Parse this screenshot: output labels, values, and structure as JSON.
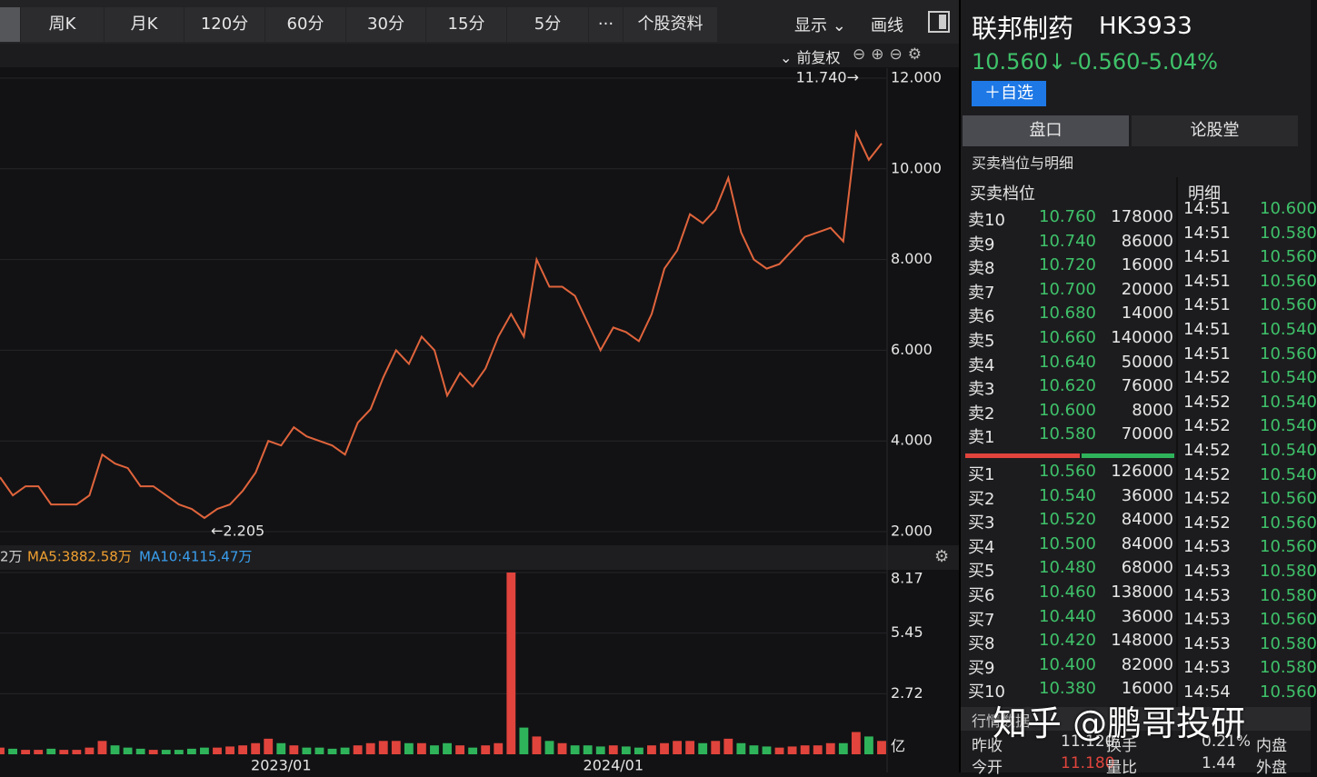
{
  "toolbar": {
    "tabs": [
      "周K",
      "月K",
      "120分",
      "60分",
      "30分",
      "15分",
      "5分",
      "···",
      "个股资料"
    ],
    "display": "显示",
    "draw": "画线",
    "adjust": "前复权"
  },
  "chart_data": [
    {
      "type": "line",
      "categories": [
        null,
        null,
        null,
        null,
        null,
        null,
        null,
        null,
        null,
        null,
        null,
        null,
        null,
        null,
        null,
        null,
        null,
        null,
        null,
        null,
        null,
        null,
        "2023/01",
        null,
        null,
        null,
        null,
        null,
        null,
        null,
        null,
        null,
        null,
        null,
        null,
        null,
        null,
        null,
        null,
        null,
        null,
        null,
        null,
        null,
        null,
        null,
        null,
        null,
        "2024/01",
        null,
        null,
        null,
        null,
        null,
        null,
        null,
        null,
        null,
        null,
        null,
        null,
        null,
        null,
        null,
        null,
        null,
        null,
        null,
        null,
        null
      ],
      "values": [
        3.2,
        2.8,
        3.0,
        3.0,
        2.6,
        2.6,
        2.6,
        2.8,
        3.7,
        3.5,
        3.4,
        3.0,
        3.0,
        2.8,
        2.6,
        2.5,
        2.3,
        2.5,
        2.6,
        2.9,
        3.3,
        4.0,
        3.9,
        4.3,
        4.1,
        4.0,
        3.9,
        3.7,
        4.4,
        4.7,
        5.4,
        6.0,
        5.7,
        6.3,
        6.0,
        5.0,
        5.5,
        5.2,
        5.6,
        6.3,
        6.8,
        6.3,
        8.0,
        7.4,
        7.4,
        7.2,
        6.6,
        6.0,
        6.5,
        6.4,
        6.2,
        6.8,
        7.8,
        8.2,
        9.0,
        8.8,
        9.1,
        9.8,
        8.6,
        8.0,
        7.8,
        7.9,
        8.2,
        8.5,
        8.6,
        8.7,
        8.4,
        10.8,
        10.2,
        10.56
      ],
      "color": "#e0643c",
      "ylim": [
        2,
        12
      ],
      "yticks": [
        {
          "value": 2,
          "label": "2.000"
        },
        {
          "value": 4,
          "label": "4.000"
        },
        {
          "value": 6,
          "label": "6.000"
        },
        {
          "value": 8,
          "label": "8.000"
        },
        {
          "value": 10,
          "label": "10.000"
        },
        {
          "value": 12,
          "label": "12.000"
        }
      ],
      "grid": true,
      "annotations": [
        {
          "label": "11.740→",
          "value": 11.74
        },
        {
          "label": "←2.205",
          "value": 2.205
        }
      ]
    },
    {
      "type": "bar",
      "values": [
        0.3,
        0.25,
        0.2,
        0.2,
        0.25,
        0.2,
        0.2,
        0.3,
        0.6,
        0.4,
        0.3,
        0.25,
        0.2,
        0.2,
        0.2,
        0.25,
        0.3,
        0.3,
        0.35,
        0.4,
        0.5,
        0.7,
        0.5,
        0.4,
        0.3,
        0.3,
        0.25,
        0.3,
        0.4,
        0.5,
        0.6,
        0.6,
        0.5,
        0.5,
        0.4,
        0.5,
        0.4,
        0.3,
        0.4,
        0.5,
        8.17,
        1.2,
        0.8,
        0.6,
        0.5,
        0.4,
        0.4,
        0.35,
        0.4,
        0.35,
        0.3,
        0.4,
        0.5,
        0.6,
        0.6,
        0.5,
        0.6,
        0.7,
        0.5,
        0.4,
        0.35,
        0.3,
        0.35,
        0.4,
        0.4,
        0.5,
        0.5,
        1.0,
        0.8,
        0.6
      ],
      "up_color": "#e0443c",
      "down_color": "#2fb35a",
      "ylim": [
        0,
        8.17
      ],
      "yticks": [
        2.72,
        5.45,
        8.17
      ],
      "unit": "亿",
      "grid": true,
      "legend": [
        {
          "name": "2万",
          "color": "#d0d0d0"
        },
        {
          "name": "MA5:3882.58万",
          "color": "#f0a030"
        },
        {
          "name": "MA10:4115.47万",
          "color": "#3a9fef"
        }
      ]
    }
  ],
  "quote": {
    "name": "联邦制药",
    "code": "HK3933",
    "price": "10.560↓",
    "change": "-0.560",
    "pct": "-5.04%",
    "watch": "＋自选"
  },
  "tabs": [
    "盘口",
    "论股堂"
  ],
  "section": "买卖档位与明细",
  "book_header": "买卖档位",
  "detail_header": "明细",
  "asks": [
    {
      "label": "卖10",
      "price": "10.760",
      "volume": 178000
    },
    {
      "label": "卖9",
      "price": "10.740",
      "volume": 86000
    },
    {
      "label": "卖8",
      "price": "10.720",
      "volume": 16000
    },
    {
      "label": "卖7",
      "price": "10.700",
      "volume": 20000
    },
    {
      "label": "卖6",
      "price": "10.680",
      "volume": 14000
    },
    {
      "label": "卖5",
      "price": "10.660",
      "volume": 140000
    },
    {
      "label": "卖4",
      "price": "10.640",
      "volume": 50000
    },
    {
      "label": "卖3",
      "price": "10.620",
      "volume": 76000
    },
    {
      "label": "卖2",
      "price": "10.600",
      "volume": 8000
    },
    {
      "label": "卖1",
      "price": "10.580",
      "volume": 70000
    }
  ],
  "bids": [
    {
      "label": "买1",
      "price": "10.560",
      "volume": 126000
    },
    {
      "label": "买2",
      "price": "10.540",
      "volume": 36000
    },
    {
      "label": "买3",
      "price": "10.520",
      "volume": 84000
    },
    {
      "label": "买4",
      "price": "10.500",
      "volume": 84000
    },
    {
      "label": "买5",
      "price": "10.480",
      "volume": 68000
    },
    {
      "label": "买6",
      "price": "10.460",
      "volume": 138000
    },
    {
      "label": "买7",
      "price": "10.440",
      "volume": 36000
    },
    {
      "label": "买8",
      "price": "10.420",
      "volume": 148000
    },
    {
      "label": "买9",
      "price": "10.400",
      "volume": 82000
    },
    {
      "label": "买10",
      "price": "10.380",
      "volume": 16000
    }
  ],
  "trades": [
    {
      "time": "14:51",
      "price": "10.600"
    },
    {
      "time": "14:51",
      "price": "10.580"
    },
    {
      "time": "14:51",
      "price": "10.560"
    },
    {
      "time": "14:51",
      "price": "10.560"
    },
    {
      "time": "14:51",
      "price": "10.560"
    },
    {
      "time": "14:51",
      "price": "10.540"
    },
    {
      "time": "14:51",
      "price": "10.560"
    },
    {
      "time": "14:52",
      "price": "10.540"
    },
    {
      "time": "14:52",
      "price": "10.540"
    },
    {
      "time": "14:52",
      "price": "10.540"
    },
    {
      "time": "14:52",
      "price": "10.540"
    },
    {
      "time": "14:52",
      "price": "10.540"
    },
    {
      "time": "14:52",
      "price": "10.560"
    },
    {
      "time": "14:52",
      "price": "10.560"
    },
    {
      "time": "14:53",
      "price": "10.560"
    },
    {
      "time": "14:53",
      "price": "10.580"
    },
    {
      "time": "14:53",
      "price": "10.580"
    },
    {
      "time": "14:53",
      "price": "10.560"
    },
    {
      "time": "14:53",
      "price": "10.580"
    },
    {
      "time": "14:53",
      "price": "10.580"
    },
    {
      "time": "14:54",
      "price": "10.560"
    }
  ],
  "stats": {
    "title": "行情数据",
    "rows": [
      [
        "昨收",
        "11.120",
        "换手",
        "0.21%",
        "内盘"
      ],
      [
        "今开",
        "11.180",
        "量比",
        "1.44",
        "外盘"
      ]
    ]
  },
  "watermark": "知乎 @鹏哥投研"
}
